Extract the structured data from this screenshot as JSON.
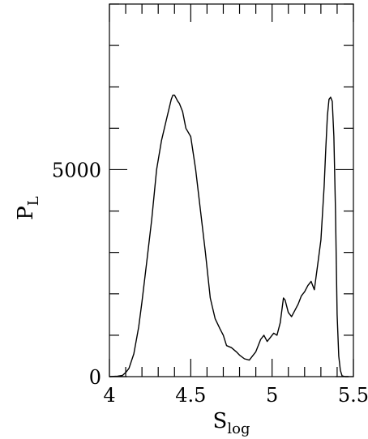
{
  "chart_data": {
    "type": "line",
    "xlabel": {
      "main": "S",
      "sub": "log"
    },
    "ylabel": {
      "main": "P",
      "sub": "L"
    },
    "xlim": [
      4.0,
      5.5
    ],
    "ylim": [
      0,
      9000
    ],
    "x_major_ticks": [
      4.0,
      4.5,
      5.0,
      5.5
    ],
    "x_tick_labels": [
      "4",
      "4.5",
      "5",
      "5.5"
    ],
    "x_minor_step": 0.1,
    "y_major_ticks": [
      0,
      5000
    ],
    "y_tick_labels": [
      "0",
      "5000"
    ],
    "y_minor_step": 1000,
    "grid": false,
    "series": [
      {
        "x": [
          4.0,
          4.05,
          4.08,
          4.1,
          4.12,
          4.15,
          4.18,
          4.2,
          4.23,
          4.26,
          4.29,
          4.32,
          4.35,
          4.38,
          4.39,
          4.4,
          4.42,
          4.43,
          4.45,
          4.47,
          4.5,
          4.53,
          4.56,
          4.59,
          4.62,
          4.65,
          4.68,
          4.7,
          4.72,
          4.75,
          4.78,
          4.8,
          4.83,
          4.86,
          4.88,
          4.9,
          4.93,
          4.95,
          4.97,
          4.99,
          5.01,
          5.03,
          5.05,
          5.07,
          5.08,
          5.1,
          5.12,
          5.14,
          5.16,
          5.18,
          5.2,
          5.22,
          5.24,
          5.26,
          5.28,
          5.3,
          5.31,
          5.32,
          5.33,
          5.34,
          5.35,
          5.36,
          5.37,
          5.38,
          5.39,
          5.4,
          5.41,
          5.42,
          5.43,
          5.45,
          5.47
        ],
        "y": [
          0,
          10,
          30,
          100,
          200,
          550,
          1200,
          1800,
          2800,
          3800,
          5000,
          5700,
          6200,
          6700,
          6800,
          6800,
          6650,
          6600,
          6400,
          6000,
          5800,
          5000,
          4000,
          3000,
          1900,
          1400,
          1150,
          1000,
          750,
          700,
          600,
          520,
          430,
          400,
          500,
          600,
          900,
          1000,
          850,
          950,
          1050,
          1000,
          1300,
          1900,
          1850,
          1550,
          1450,
          1600,
          1750,
          1950,
          2050,
          2200,
          2300,
          2100,
          2700,
          3300,
          3950,
          4600,
          5500,
          6300,
          6700,
          6750,
          6650,
          5800,
          4000,
          1500,
          500,
          150,
          20,
          0,
          0
        ]
      }
    ]
  }
}
